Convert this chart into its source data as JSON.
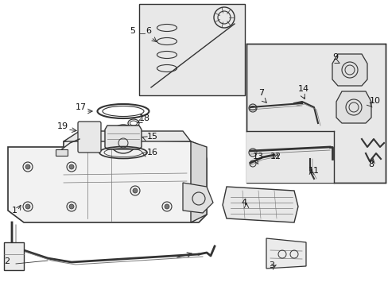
{
  "bg_color": "#ffffff",
  "box_bg": "#e8e8e8",
  "fig_width": 4.89,
  "fig_height": 3.6,
  "dpi": 100,
  "gray": "#333333",
  "lgray": "#777777",
  "lw": 0.9
}
